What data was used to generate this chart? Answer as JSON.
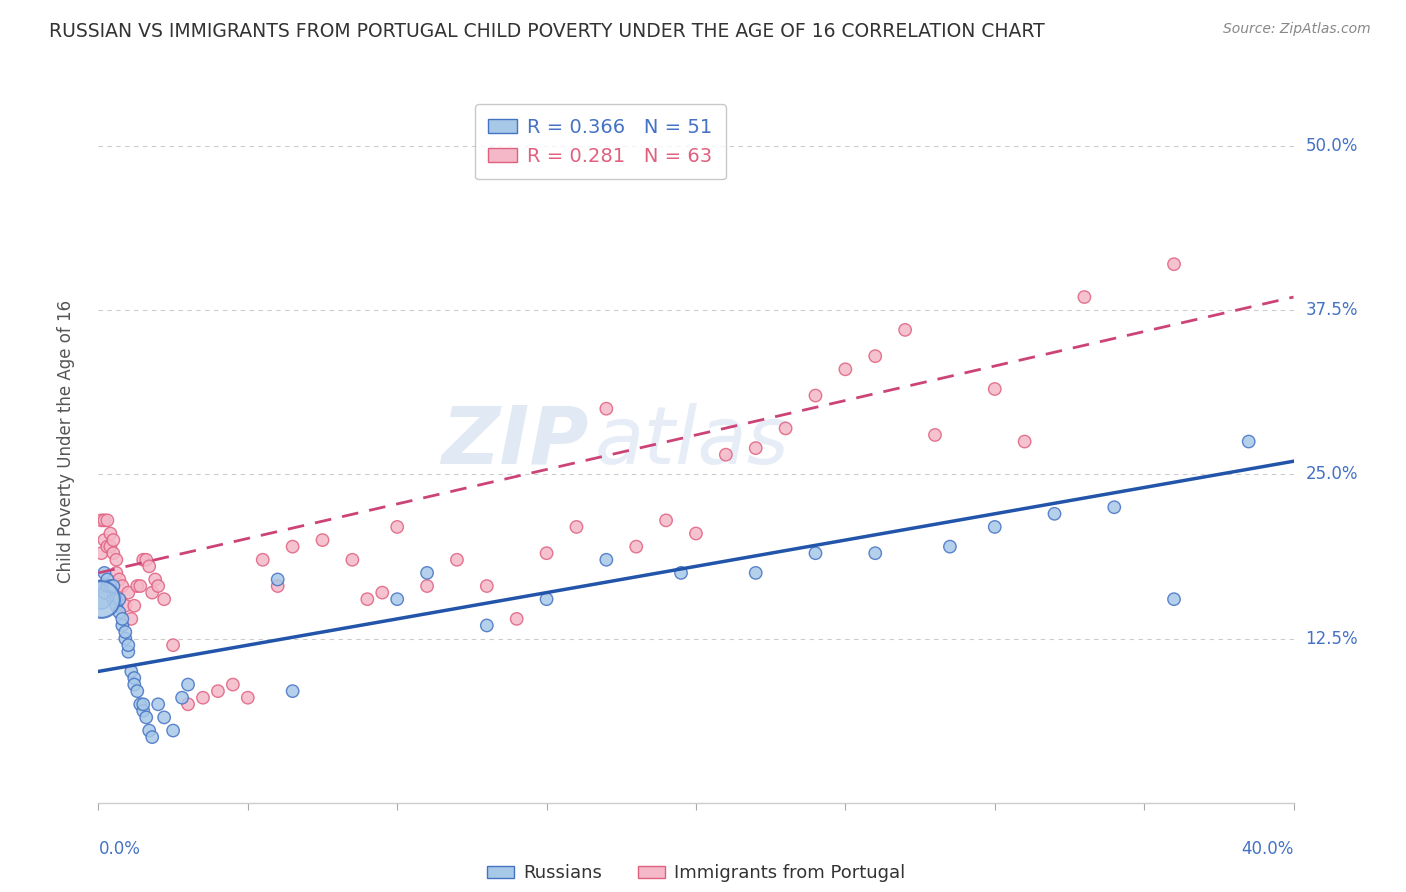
{
  "title": "RUSSIAN VS IMMIGRANTS FROM PORTUGAL CHILD POVERTY UNDER THE AGE OF 16 CORRELATION CHART",
  "source": "Source: ZipAtlas.com",
  "ylabel": "Child Poverty Under the Age of 16",
  "ytick_labels": [
    "12.5%",
    "25.0%",
    "37.5%",
    "50.0%"
  ],
  "ytick_values": [
    0.125,
    0.25,
    0.375,
    0.5
  ],
  "xlim": [
    0.0,
    0.4
  ],
  "ylim": [
    0.0,
    0.55
  ],
  "watermark_zip": "ZIP",
  "watermark_atlas": "atlas",
  "legend_russian_R": 0.366,
  "legend_russian_N": 51,
  "legend_portugal_R": 0.281,
  "legend_portugal_N": 63,
  "background_color": "#ffffff",
  "grid_color": "#cccccc",
  "russian_color": "#a8c8e8",
  "russian_edge_color": "#4472c4",
  "portugal_color": "#f4b8c8",
  "portugal_edge_color": "#e06080",
  "russian_line_color": "#2255aa",
  "portugal_line_color": "#cc4477",
  "axis_label_color": "#4472c4",
  "title_color": "#333333",
  "source_color": "#888888",
  "russian_x": [
    0.001,
    0.001,
    0.002,
    0.002,
    0.003,
    0.003,
    0.004,
    0.005,
    0.005,
    0.006,
    0.006,
    0.007,
    0.007,
    0.008,
    0.008,
    0.009,
    0.009,
    0.01,
    0.01,
    0.011,
    0.012,
    0.012,
    0.013,
    0.014,
    0.015,
    0.015,
    0.016,
    0.017,
    0.018,
    0.02,
    0.022,
    0.025,
    0.028,
    0.03,
    0.06,
    0.065,
    0.1,
    0.11,
    0.13,
    0.15,
    0.17,
    0.195,
    0.22,
    0.24,
    0.26,
    0.285,
    0.3,
    0.32,
    0.34,
    0.36,
    0.385
  ],
  "russian_y": [
    0.155,
    0.165,
    0.16,
    0.175,
    0.165,
    0.17,
    0.165,
    0.155,
    0.165,
    0.155,
    0.15,
    0.145,
    0.155,
    0.135,
    0.14,
    0.125,
    0.13,
    0.115,
    0.12,
    0.1,
    0.095,
    0.09,
    0.085,
    0.075,
    0.07,
    0.075,
    0.065,
    0.055,
    0.05,
    0.075,
    0.065,
    0.055,
    0.08,
    0.09,
    0.17,
    0.085,
    0.155,
    0.175,
    0.135,
    0.155,
    0.185,
    0.175,
    0.175,
    0.19,
    0.19,
    0.195,
    0.21,
    0.22,
    0.225,
    0.155,
    0.275
  ],
  "russian_sizes": [
    200,
    80,
    80,
    80,
    80,
    80,
    80,
    80,
    80,
    80,
    80,
    80,
    80,
    80,
    80,
    80,
    80,
    80,
    80,
    80,
    80,
    80,
    80,
    80,
    80,
    80,
    80,
    80,
    80,
    80,
    80,
    80,
    80,
    80,
    80,
    80,
    80,
    80,
    80,
    80,
    80,
    80,
    80,
    80,
    80,
    80,
    80,
    80,
    80,
    80,
    80
  ],
  "portugal_x": [
    0.001,
    0.001,
    0.002,
    0.002,
    0.003,
    0.003,
    0.004,
    0.004,
    0.005,
    0.005,
    0.006,
    0.006,
    0.007,
    0.008,
    0.009,
    0.01,
    0.011,
    0.012,
    0.013,
    0.014,
    0.015,
    0.016,
    0.017,
    0.018,
    0.019,
    0.02,
    0.022,
    0.025,
    0.03,
    0.035,
    0.04,
    0.045,
    0.05,
    0.055,
    0.06,
    0.065,
    0.075,
    0.085,
    0.09,
    0.095,
    0.1,
    0.11,
    0.12,
    0.13,
    0.14,
    0.15,
    0.16,
    0.17,
    0.18,
    0.19,
    0.2,
    0.21,
    0.22,
    0.23,
    0.24,
    0.25,
    0.26,
    0.27,
    0.28,
    0.3,
    0.31,
    0.33,
    0.36
  ],
  "portugal_y": [
    0.19,
    0.215,
    0.2,
    0.215,
    0.195,
    0.215,
    0.195,
    0.205,
    0.19,
    0.2,
    0.185,
    0.175,
    0.17,
    0.165,
    0.15,
    0.16,
    0.14,
    0.15,
    0.165,
    0.165,
    0.185,
    0.185,
    0.18,
    0.16,
    0.17,
    0.165,
    0.155,
    0.12,
    0.075,
    0.08,
    0.085,
    0.09,
    0.08,
    0.185,
    0.165,
    0.195,
    0.2,
    0.185,
    0.155,
    0.16,
    0.21,
    0.165,
    0.185,
    0.165,
    0.14,
    0.19,
    0.21,
    0.3,
    0.195,
    0.215,
    0.205,
    0.265,
    0.27,
    0.285,
    0.31,
    0.33,
    0.34,
    0.36,
    0.28,
    0.315,
    0.275,
    0.385,
    0.41
  ],
  "portugal_sizes": [
    80,
    80,
    80,
    80,
    80,
    80,
    80,
    80,
    80,
    80,
    80,
    80,
    80,
    80,
    80,
    80,
    80,
    80,
    80,
    80,
    80,
    80,
    80,
    80,
    80,
    80,
    80,
    80,
    80,
    80,
    80,
    80,
    80,
    80,
    80,
    80,
    80,
    80,
    80,
    80,
    80,
    80,
    80,
    80,
    80,
    80,
    80,
    80,
    80,
    80,
    80,
    80,
    80,
    80,
    80,
    80,
    80,
    80,
    80,
    80,
    80,
    80,
    80
  ]
}
